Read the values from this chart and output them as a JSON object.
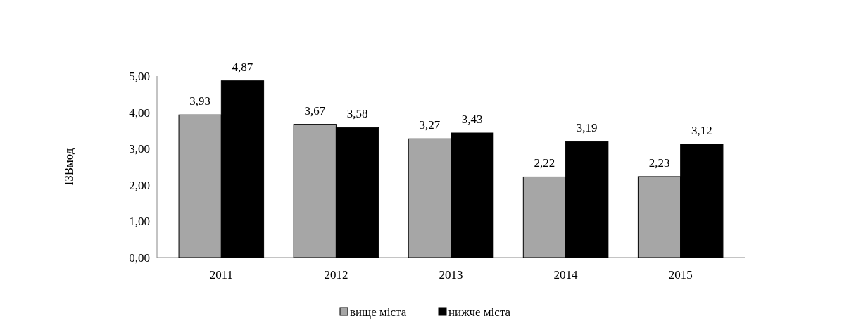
{
  "chart_data": {
    "type": "bar",
    "ylabel": "ІЗВмод",
    "categories": [
      "2011",
      "2012",
      "2013",
      "2014",
      "2015"
    ],
    "series": [
      {
        "name": "вище міста",
        "color": "#a6a6a6",
        "values": [
          3.93,
          3.67,
          3.27,
          2.22,
          2.23
        ],
        "value_labels": [
          "3,93",
          "3,67",
          "3,27",
          "2,22",
          "2,23"
        ]
      },
      {
        "name": "нижче міста",
        "color": "#000000",
        "values": [
          4.87,
          3.58,
          3.43,
          3.19,
          3.12
        ],
        "value_labels": [
          "4,87",
          "3,58",
          "3,43",
          "3,19",
          "3,12"
        ]
      }
    ],
    "ylim": [
      0,
      5
    ],
    "yticks": [
      {
        "value": 0,
        "label": "0,00"
      },
      {
        "value": 1,
        "label": "1,00"
      },
      {
        "value": 2,
        "label": "2,00"
      },
      {
        "value": 3,
        "label": "3,00"
      },
      {
        "value": 4,
        "label": "4,00"
      },
      {
        "value": 5,
        "label": "5,00"
      }
    ],
    "legend": "bottom"
  }
}
